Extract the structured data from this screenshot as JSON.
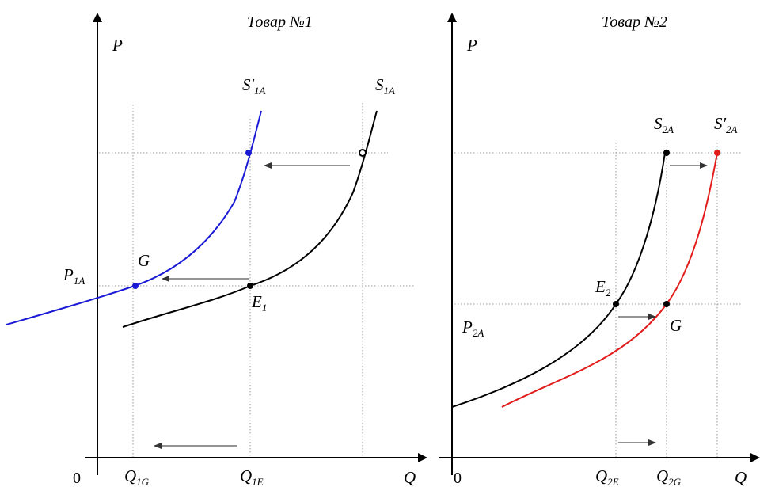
{
  "colors": {
    "axis": "#000000",
    "guide": "#9a9a9a",
    "supply_original": "#000000",
    "supply_shift_1": "#1a1ad6",
    "supply_shift_2": "#e21b1b",
    "arrow": "#555555"
  },
  "panel1": {
    "title": "Товар №1",
    "y_axis": "P",
    "x_axis": "Q",
    "origin": "0",
    "curve_S1A": {
      "main": "S",
      "sub": "1A"
    },
    "curve_S1A_prime": {
      "main": "S'",
      "sub": "1A"
    },
    "point_G": "G",
    "point_E1": {
      "main": "E",
      "sub": "1"
    },
    "price_P1A": {
      "main": "P",
      "sub": "1A"
    },
    "q_Q1G": {
      "main": "Q",
      "sub": "1G"
    },
    "q_Q1E": {
      "main": "Q",
      "sub": "1E"
    }
  },
  "panel2": {
    "title": "Товар №2",
    "y_axis": "P",
    "x_axis": "Q",
    "origin": "0",
    "curve_S2A": {
      "main": "S",
      "sub": "2A"
    },
    "curve_S2A_prime": {
      "main": "S'",
      "sub": "2A"
    },
    "point_E2": {
      "main": "E",
      "sub": "2"
    },
    "point_G": "G",
    "price_P2A": {
      "main": "P",
      "sub": "2A"
    },
    "q_Q2E": {
      "main": "Q",
      "sub": "2E"
    },
    "q_Q2G": {
      "main": "Q",
      "sub": "2G"
    }
  }
}
